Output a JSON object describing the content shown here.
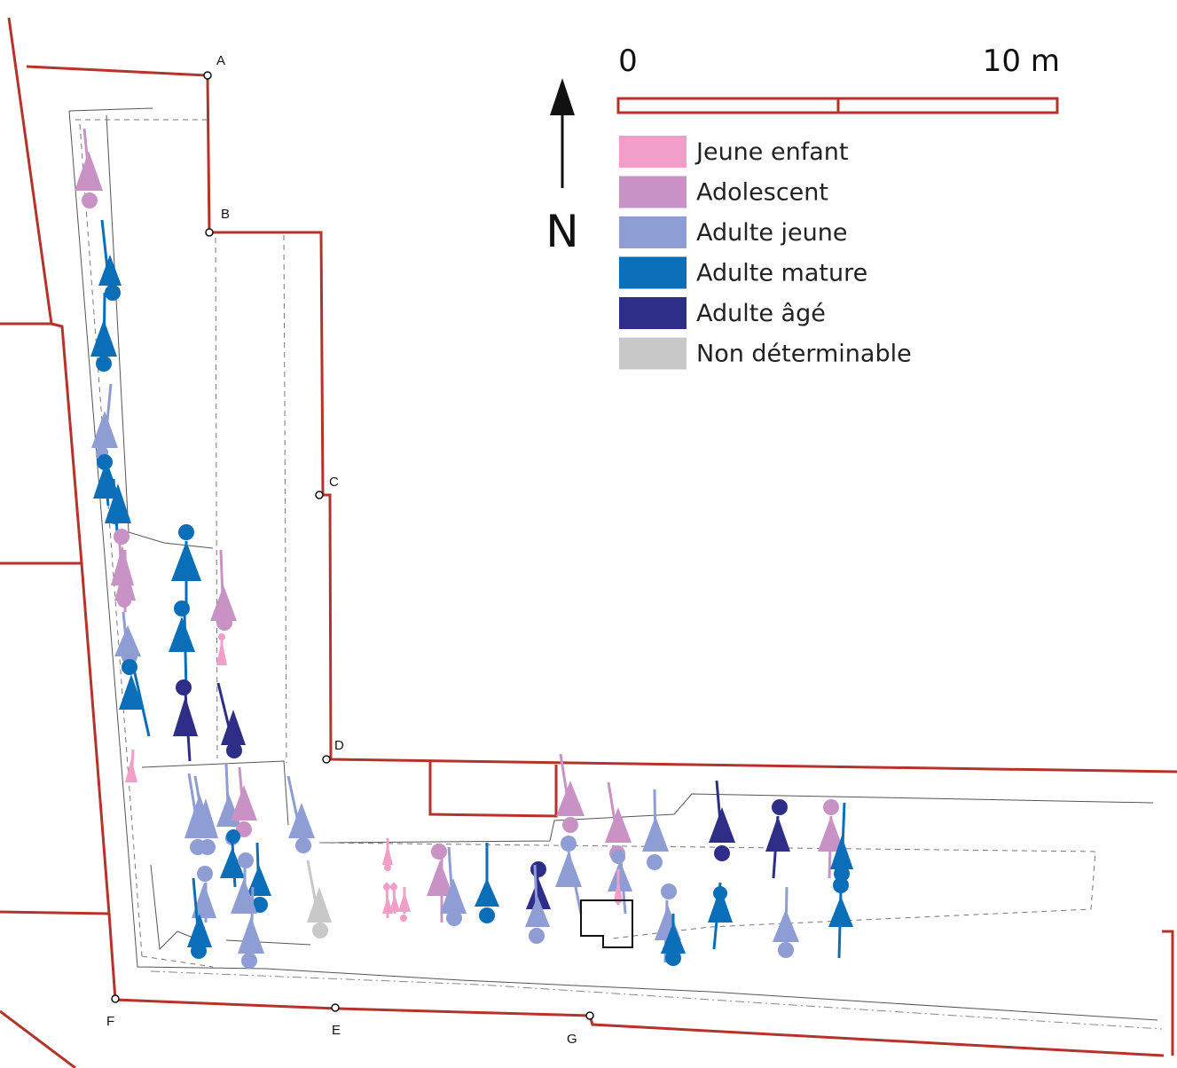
{
  "colors": {
    "wall": "#b5332a",
    "outline": "#555555",
    "Jeune enfant": "#f19ec8",
    "Adolescent": "#c893c4",
    "Adulte jeune": "#8e9dd3",
    "Adulte mature": "#0a6fb8",
    "Adulte âgé": "#2e2d88",
    "Non déterminable": "#c8c8c8"
  },
  "scale": {
    "start_label": "0",
    "end_label": "10 m"
  },
  "north": {
    "label": "N",
    "icon": "north-arrow-icon"
  },
  "legend": [
    {
      "label": "Jeune enfant",
      "key": "Jeune enfant"
    },
    {
      "label": "Adolescent",
      "key": "Adolescent"
    },
    {
      "label": "Adulte jeune",
      "key": "Adulte jeune"
    },
    {
      "label": "Adulte mature",
      "key": "Adulte mature"
    },
    {
      "label": "Adulte âgé",
      "key": "Adulte âgé"
    },
    {
      "label": "Non déterminable",
      "key": "Non déterminable"
    }
  ],
  "points": [
    "A",
    "B",
    "C",
    "D",
    "E",
    "F",
    "G"
  ]
}
